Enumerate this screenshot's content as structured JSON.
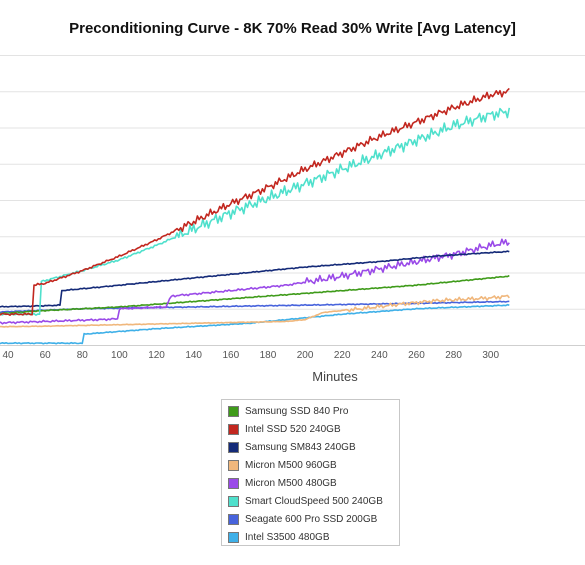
{
  "chart_data": {
    "type": "line",
    "title": "Preconditioning Curve - 8K 70% Read 30% Write [Avg Latency]",
    "xlabel": "Minutes",
    "xlim": [
      30,
      310
    ],
    "ylim": [
      0,
      8
    ],
    "xticks": [
      40,
      60,
      80,
      100,
      120,
      140,
      160,
      180,
      200,
      220,
      240,
      260,
      280,
      300
    ],
    "legend_position": "bottom",
    "series": [
      {
        "name": "Samsung SSD 840 Pro",
        "color": "#3f9b1a",
        "points": [
          [
            30,
            0.85
          ],
          [
            60,
            0.95
          ],
          [
            100,
            1.05
          ],
          [
            140,
            1.2
          ],
          [
            180,
            1.35
          ],
          [
            220,
            1.5
          ],
          [
            260,
            1.65
          ],
          [
            300,
            1.85
          ],
          [
            310,
            1.9
          ]
        ]
      },
      {
        "name": "Intel SSD 520 240GB",
        "color": "#c2271f",
        "points": [
          [
            30,
            0.85
          ],
          [
            53,
            0.85
          ],
          [
            54,
            1.65
          ],
          [
            60,
            1.7
          ],
          [
            80,
            2.05
          ],
          [
            100,
            2.45
          ],
          [
            120,
            2.9
          ],
          [
            140,
            3.4
          ],
          [
            160,
            3.9
          ],
          [
            180,
            4.35
          ],
          [
            200,
            4.85
          ],
          [
            220,
            5.3
          ],
          [
            240,
            5.75
          ],
          [
            260,
            6.15
          ],
          [
            280,
            6.55
          ],
          [
            300,
            6.9
          ],
          [
            310,
            7.0
          ]
        ]
      },
      {
        "name": "Samsung SM843 240GB",
        "color": "#142a78",
        "points": [
          [
            30,
            1.05
          ],
          [
            50,
            1.07
          ],
          [
            58,
            1.08
          ],
          [
            68,
            1.1
          ],
          [
            69,
            1.5
          ],
          [
            90,
            1.6
          ],
          [
            110,
            1.7
          ],
          [
            140,
            1.85
          ],
          [
            170,
            2.0
          ],
          [
            200,
            2.15
          ],
          [
            240,
            2.3
          ],
          [
            270,
            2.45
          ],
          [
            300,
            2.55
          ],
          [
            310,
            2.58
          ]
        ]
      },
      {
        "name": "Micron M500 960GB",
        "color": "#f0b77c",
        "points": [
          [
            30,
            0.5
          ],
          [
            60,
            0.52
          ],
          [
            90,
            0.55
          ],
          [
            120,
            0.58
          ],
          [
            160,
            0.62
          ],
          [
            190,
            0.65
          ],
          [
            200,
            0.7
          ],
          [
            210,
            0.9
          ],
          [
            230,
            1.0
          ],
          [
            250,
            1.12
          ],
          [
            270,
            1.22
          ],
          [
            300,
            1.3
          ],
          [
            310,
            1.35
          ]
        ]
      },
      {
        "name": "Micron M500 480GB",
        "color": "#9a4ae8",
        "points": [
          [
            30,
            0.6
          ],
          [
            60,
            0.65
          ],
          [
            90,
            0.7
          ],
          [
            99,
            0.72
          ],
          [
            100,
            1.0
          ],
          [
            125,
            1.05
          ],
          [
            128,
            1.35
          ],
          [
            160,
            1.5
          ],
          [
            190,
            1.65
          ],
          [
            220,
            1.9
          ],
          [
            240,
            2.1
          ],
          [
            260,
            2.3
          ],
          [
            280,
            2.5
          ],
          [
            300,
            2.75
          ],
          [
            310,
            2.85
          ]
        ]
      },
      {
        "name": "Smart CloudSpeed 500 240GB",
        "color": "#4fe0cc",
        "points": [
          [
            30,
            0.85
          ],
          [
            57,
            0.85
          ],
          [
            58,
            1.75
          ],
          [
            80,
            2.05
          ],
          [
            100,
            2.35
          ],
          [
            120,
            2.75
          ],
          [
            140,
            3.2
          ],
          [
            160,
            3.65
          ],
          [
            180,
            4.05
          ],
          [
            200,
            4.45
          ],
          [
            220,
            4.85
          ],
          [
            240,
            5.25
          ],
          [
            260,
            5.65
          ],
          [
            280,
            6.05
          ],
          [
            300,
            6.35
          ],
          [
            310,
            6.45
          ]
        ]
      },
      {
        "name": "Seagate 600 Pro SSD 200GB",
        "color": "#4763dc",
        "points": [
          [
            30,
            0.9
          ],
          [
            80,
            1.0
          ],
          [
            140,
            1.05
          ],
          [
            200,
            1.1
          ],
          [
            260,
            1.15
          ],
          [
            310,
            1.2
          ]
        ]
      },
      {
        "name": "Intel S3500 480GB",
        "color": "#3fb0e8",
        "points": [
          [
            30,
            0.05
          ],
          [
            80,
            0.05
          ],
          [
            81,
            0.3
          ],
          [
            120,
            0.45
          ],
          [
            170,
            0.6
          ],
          [
            220,
            0.85
          ],
          [
            260,
            1.0
          ],
          [
            310,
            1.1
          ]
        ]
      }
    ]
  }
}
